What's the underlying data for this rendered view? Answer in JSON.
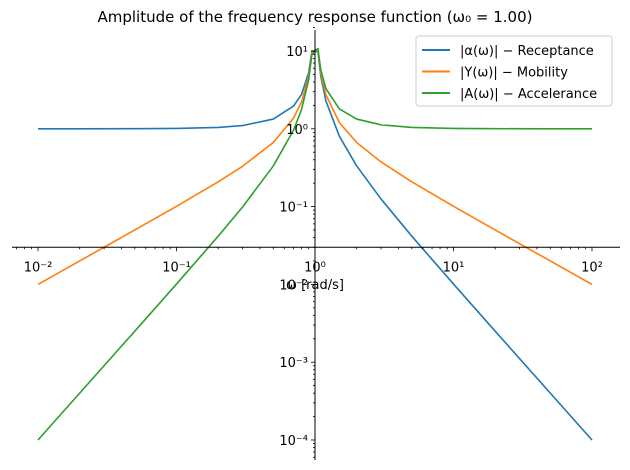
{
  "chart_data": {
    "type": "line",
    "title": "Amplitude of the frequency response function (ω₀ = 1.00)",
    "xlabel": "ω [rad/s]",
    "ylabel": "",
    "xscale": "log",
    "yscale": "log",
    "xlim": [
      0.007,
      160
    ],
    "ylim": [
      6e-05,
      20
    ],
    "x_ticks": [
      {
        "value": 0.01,
        "label": "10⁻²"
      },
      {
        "value": 0.1,
        "label": "10⁻¹"
      },
      {
        "value": 1,
        "label": "10⁰"
      },
      {
        "value": 10,
        "label": "10¹"
      },
      {
        "value": 100,
        "label": "10²"
      }
    ],
    "y_ticks": [
      {
        "value": 0.0001,
        "label": "10⁻⁴"
      },
      {
        "value": 0.001,
        "label": "10⁻³"
      },
      {
        "value": 0.01,
        "label": "10⁻²"
      },
      {
        "value": 0.1,
        "label": "10⁻¹"
      },
      {
        "value": 1,
        "label": "10⁰"
      },
      {
        "value": 10,
        "label": "10¹"
      }
    ],
    "grid": false,
    "legend_position": "top-right",
    "series": [
      {
        "name": "|α(ω)| − Receptance",
        "color": "#1f77b4",
        "x": [
          0.01,
          0.02,
          0.05,
          0.1,
          0.2,
          0.3,
          0.5,
          0.7,
          0.8,
          0.9,
          0.95,
          1.0,
          1.05,
          1.1,
          1.2,
          1.5,
          2,
          3,
          5,
          10,
          20,
          50,
          100
        ],
        "y": [
          1.0001,
          1.0004,
          1.0025,
          1.0101,
          1.0417,
          1.0989,
          1.3333,
          1.9608,
          2.7778,
          5.2632,
          10.0,
          10.0,
          9.7561,
          4.7619,
          2.2727,
          0.8,
          0.3333,
          0.125,
          0.04167,
          0.0101,
          0.0025063,
          0.00040016,
          0.00010001
        ]
      },
      {
        "name": "|Y(ω)| − Mobility",
        "color": "#ff7f0e",
        "x": [
          0.01,
          0.02,
          0.05,
          0.1,
          0.2,
          0.3,
          0.5,
          0.7,
          0.8,
          0.9,
          0.95,
          1.0,
          1.05,
          1.1,
          1.2,
          1.5,
          2,
          3,
          5,
          10,
          20,
          50,
          100
        ],
        "y": [
          0.010001,
          0.020008,
          0.050125,
          0.10101,
          0.20833,
          0.32967,
          0.66667,
          1.3725,
          2.2222,
          4.7368,
          9.5,
          10.0,
          10.244,
          5.2381,
          2.7273,
          1.2,
          0.6667,
          0.375,
          0.20833,
          0.10101,
          0.050125,
          0.020008,
          0.010001
        ]
      },
      {
        "name": "|A(ω)| − Accelerance",
        "color": "#2ca02c",
        "x": [
          0.01,
          0.02,
          0.05,
          0.1,
          0.2,
          0.3,
          0.5,
          0.7,
          0.8,
          0.9,
          0.95,
          1.0,
          1.05,
          1.1,
          1.2,
          1.5,
          2,
          3,
          5,
          10,
          20,
          50,
          100
        ],
        "y": [
          0.00010001,
          0.00040016,
          0.0025063,
          0.010101,
          0.041667,
          0.098901,
          0.33333,
          0.96078,
          1.7778,
          4.2632,
          9.025,
          10.0,
          10.756,
          5.7619,
          3.2727,
          1.8,
          1.3333,
          1.125,
          1.0417,
          1.0101,
          1.0025,
          1.0004,
          1.0001
        ]
      }
    ]
  }
}
